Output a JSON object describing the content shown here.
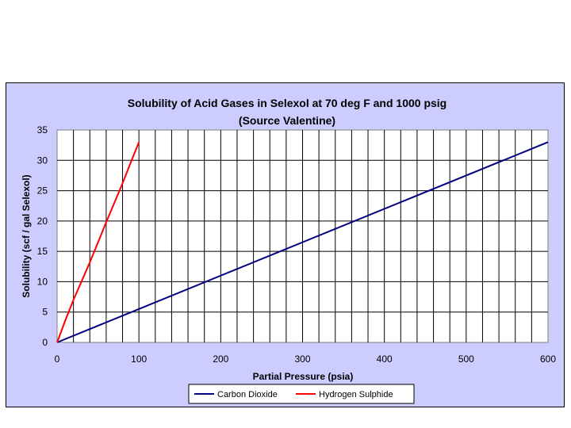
{
  "chart_data": {
    "type": "line",
    "title": "Solubility of Acid Gases in Selexol at 70 deg F and 1000 psig",
    "subtitle": "(Source Valentine)",
    "xlabel": "Partial Pressure (psia)",
    "ylabel": "Solubility (scf / gal Selexol)",
    "xlim": [
      0,
      600
    ],
    "ylim": [
      0,
      35
    ],
    "x_major_ticks": [
      0,
      100,
      200,
      300,
      400,
      500,
      600
    ],
    "x_grid_step": 20,
    "y_ticks": [
      0,
      5,
      10,
      15,
      20,
      25,
      30,
      35
    ],
    "grid": true,
    "legend_position": "bottom",
    "plot_background": "#ffffff",
    "frame_background": "#ccccff",
    "series": [
      {
        "name": "Carbon Dioxide",
        "color": "#000080",
        "x": [
          0,
          600
        ],
        "y": [
          0,
          33
        ]
      },
      {
        "name": "Hydrogen Sulphide",
        "color": "#ff0000",
        "x": [
          0,
          10,
          20,
          30,
          40,
          50,
          60,
          70,
          80,
          90,
          100
        ],
        "y": [
          0,
          3.6,
          7.0,
          10.1,
          13.2,
          16.5,
          19.8,
          23.0,
          26.2,
          29.6,
          33.0
        ]
      }
    ]
  }
}
